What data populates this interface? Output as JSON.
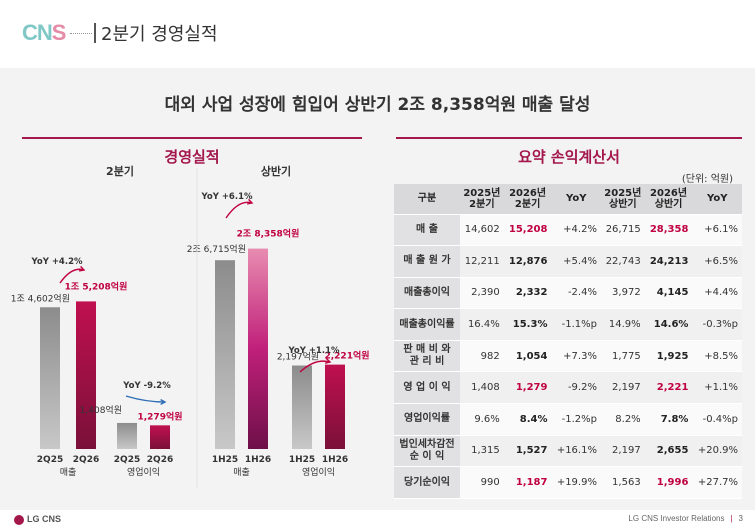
{
  "header": {
    "logo_part1": "CN",
    "logo_part2": "S",
    "title": "2분기 경영실적"
  },
  "headline": "대외 사업 성장에 힘입어 상반기 2조 8,358억원 매출 달성",
  "left_section": {
    "title": "경영실적",
    "group_q_label": "2분기",
    "group_h_label": "상반기",
    "colors": {
      "prev": "#8a8a8a",
      "curr": "#a3174b",
      "accent": "#c00040",
      "down_arrow": "#2f6fb5"
    }
  },
  "chart_data": {
    "type": "bar",
    "unit": "억원",
    "groups": [
      {
        "period": "2분기",
        "metric": "매출",
        "categories": [
          "2Q25",
          "2Q26"
        ],
        "values": [
          14602,
          15208
        ],
        "value_labels": [
          "1조 4,602억원",
          "1조 5,208억원"
        ],
        "yoy": "YoY +4.2%",
        "direction": "up"
      },
      {
        "period": "2분기",
        "metric": "영업이익",
        "categories": [
          "2Q25",
          "2Q26"
        ],
        "values": [
          1408,
          1279
        ],
        "value_labels": [
          "1,408억원",
          "1,279억원"
        ],
        "yoy": "YoY -9.2%",
        "direction": "down"
      },
      {
        "period": "상반기",
        "metric": "매출",
        "categories": [
          "1H25",
          "1H26"
        ],
        "values": [
          26715,
          28358
        ],
        "value_labels": [
          "2조 6,715억원",
          "2조 8,358억원"
        ],
        "yoy": "YoY +6.1%",
        "direction": "up"
      },
      {
        "period": "상반기",
        "metric": "영업이익",
        "categories": [
          "1H25",
          "1H26"
        ],
        "values": [
          2197,
          2221
        ],
        "value_labels": [
          "2,197억원",
          "2,221억원"
        ],
        "yoy": "YoY +1.1%",
        "direction": "up"
      }
    ]
  },
  "right_section": {
    "title": "요약 손익계산서",
    "unit": "(단위: 억원)",
    "headers": [
      "구분",
      "2025년\n2분기",
      "2026년\n2분기",
      "YoY",
      "2025년\n상반기",
      "2026년\n상반기",
      "YoY"
    ],
    "rows": [
      {
        "label": "매 출",
        "cells": [
          "14,602",
          "15,208",
          "+4.2%",
          "26,715",
          "28,358",
          "+6.1%"
        ],
        "highlight": true
      },
      {
        "label": "매 출 원 가",
        "cells": [
          "12,211",
          "12,876",
          "+5.4%",
          "22,743",
          "24,213",
          "+6.5%"
        ],
        "highlight": false
      },
      {
        "label": "매출총이익",
        "cells": [
          "2,390",
          "2,332",
          "-2.4%",
          "3,972",
          "4,145",
          "+4.4%"
        ],
        "highlight": false
      },
      {
        "label": "매출총이익률",
        "cells": [
          "16.4%",
          "15.3%",
          "-1.1%p",
          "14.9%",
          "14.6%",
          "-0.3%p"
        ],
        "highlight": false
      },
      {
        "label": "판 매 비 와\n관 리 비",
        "cells": [
          "982",
          "1,054",
          "+7.3%",
          "1,775",
          "1,925",
          "+8.5%"
        ],
        "highlight": false
      },
      {
        "label": "영 업 이 익",
        "cells": [
          "1,408",
          "1,279",
          "-9.2%",
          "2,197",
          "2,221",
          "+1.1%"
        ],
        "highlight": true
      },
      {
        "label": "영업이익률",
        "cells": [
          "9.6%",
          "8.4%",
          "-1.2%p",
          "8.2%",
          "7.8%",
          "-0.4%p"
        ],
        "highlight": false
      },
      {
        "label": "법인세차감전\n순 이 익",
        "cells": [
          "1,315",
          "1,527",
          "+16.1%",
          "2,197",
          "2,655",
          "+20.9%"
        ],
        "highlight": false
      },
      {
        "label": "당기순이익",
        "cells": [
          "990",
          "1,187",
          "+19.9%",
          "1,563",
          "1,996",
          "+27.7%"
        ],
        "highlight": true
      }
    ]
  },
  "footer": {
    "logo": "LG CNS",
    "right_text": "LG CNS Investor Relations",
    "page": "3"
  }
}
